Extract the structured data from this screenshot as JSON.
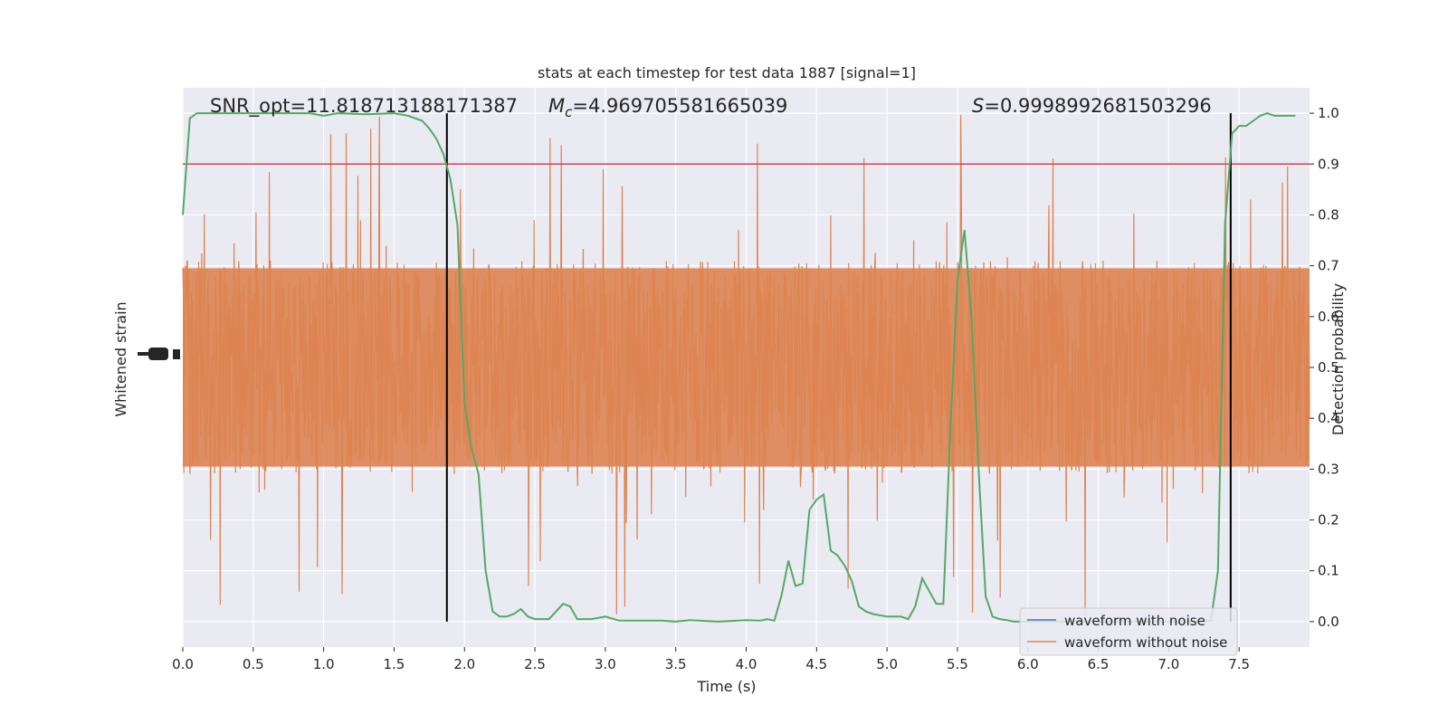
{
  "chart_data": {
    "type": "line",
    "title": "stats at each timestep for test data 1887 [signal=1]",
    "xlabel": "Time (s)",
    "ylabel_left": "Whitened strain",
    "ylabel_right": "Detection probability",
    "xlim": [
      0.0,
      8.0
    ],
    "x_ticks": [
      "0.0",
      "0.5",
      "1.0",
      "1.5",
      "2.0",
      "2.5",
      "3.0",
      "3.5",
      "4.0",
      "4.5",
      "5.0",
      "5.5",
      "6.0",
      "6.5",
      "7.0",
      "7.5"
    ],
    "ylim_right": [
      -0.05,
      1.05
    ],
    "y_ticks_right": [
      "0.0",
      "0.1",
      "0.2",
      "0.3",
      "0.4",
      "0.5",
      "0.6",
      "0.7",
      "0.8",
      "0.9",
      "1.0"
    ],
    "annotations": {
      "snr": "SNR_opt=11.818713188171387",
      "mc_symbol": "M",
      "mc_sub": "c",
      "mc_value": "=4.969705581665039",
      "s_symbol": "S",
      "s_value": "=0.9998992681503296"
    },
    "threshold": 0.9,
    "vertical_lines_s": [
      1.875,
      7.44
    ],
    "legend": {
      "placement": "lower-right",
      "entries": [
        "waveform with noise",
        "waveform without noise"
      ]
    },
    "grid": true,
    "colors": {
      "plot_bg": "#eaeaf2",
      "grid": "#ffffff",
      "noise_series": "#4c72b0",
      "waveform": "#dd8452",
      "probability": "#55a868",
      "threshold": "#c44e52",
      "vlines": "#000000"
    },
    "probability_series": {
      "name": "Detection probability",
      "x": [
        0.0,
        0.05,
        0.1,
        0.2,
        0.3,
        0.5,
        0.7,
        0.9,
        1.0,
        1.1,
        1.3,
        1.5,
        1.6,
        1.7,
        1.75,
        1.8,
        1.85,
        1.9,
        1.95,
        2.0,
        2.05,
        2.1,
        2.15,
        2.2,
        2.25,
        2.3,
        2.35,
        2.4,
        2.45,
        2.5,
        2.55,
        2.6,
        2.7,
        2.75,
        2.8,
        2.85,
        2.9,
        3.0,
        3.1,
        3.2,
        3.3,
        3.4,
        3.5,
        3.6,
        3.8,
        4.0,
        4.1,
        4.15,
        4.2,
        4.25,
        4.3,
        4.35,
        4.4,
        4.45,
        4.5,
        4.55,
        4.6,
        4.65,
        4.7,
        4.75,
        4.8,
        4.85,
        4.9,
        5.0,
        5.1,
        5.15,
        5.2,
        5.25,
        5.3,
        5.35,
        5.4,
        5.45,
        5.5,
        5.55,
        5.6,
        5.65,
        5.7,
        5.75,
        5.8,
        5.85,
        5.9,
        6.0,
        6.5,
        7.0,
        7.2,
        7.3,
        7.35,
        7.4,
        7.45,
        7.5,
        7.55,
        7.6,
        7.65,
        7.7,
        7.75,
        7.8,
        7.9
      ],
      "y": [
        0.8,
        0.99,
        1.0,
        1.0,
        1.0,
        1.0,
        1.0,
        1.0,
        0.995,
        1.0,
        0.998,
        1.0,
        0.995,
        0.985,
        0.97,
        0.95,
        0.92,
        0.87,
        0.78,
        0.43,
        0.34,
        0.29,
        0.1,
        0.02,
        0.01,
        0.01,
        0.015,
        0.025,
        0.01,
        0.005,
        0.005,
        0.005,
        0.035,
        0.03,
        0.005,
        0.005,
        0.005,
        0.01,
        0.002,
        0.002,
        0.002,
        0.002,
        0.0,
        0.003,
        0.0,
        0.003,
        0.002,
        0.005,
        0.002,
        0.05,
        0.12,
        0.07,
        0.075,
        0.22,
        0.24,
        0.25,
        0.14,
        0.13,
        0.11,
        0.08,
        0.03,
        0.02,
        0.015,
        0.01,
        0.01,
        0.005,
        0.03,
        0.085,
        0.06,
        0.035,
        0.035,
        0.38,
        0.67,
        0.77,
        0.6,
        0.3,
        0.05,
        0.01,
        0.005,
        0.003,
        0.0,
        0.0,
        0.0,
        0.0,
        0.0,
        0.002,
        0.1,
        0.78,
        0.96,
        0.975,
        0.975,
        0.985,
        0.995,
        1.0,
        0.995,
        0.995,
        0.995
      ]
    },
    "waveform_series": {
      "name": "waveform without noise",
      "description_style": "dense noise band, core spans about 0.3–0.7 with spikes reaching about 0.1 and 1.0 on the probability axis scale"
    }
  }
}
